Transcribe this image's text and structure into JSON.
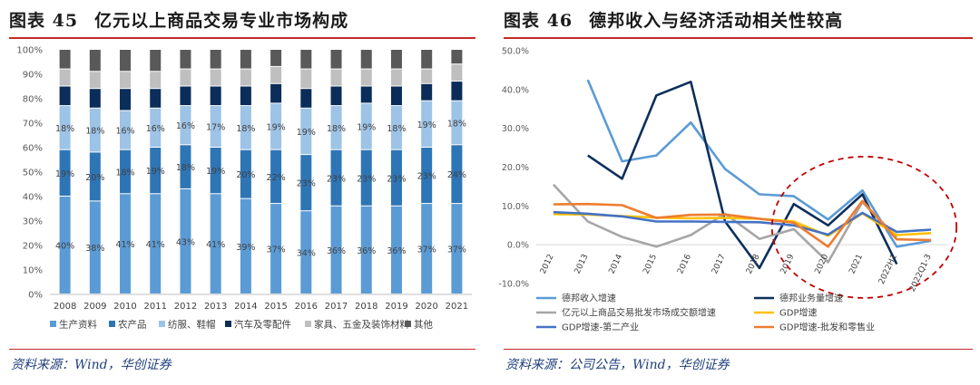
{
  "left": {
    "title_num": "图表 45",
    "title_text": "亿元以上商品交易专业市场构成",
    "source": "资料来源：Wind，华创证券",
    "chart_data": {
      "type": "bar",
      "stacked": true,
      "categories": [
        "2008",
        "2009",
        "2010",
        "2011",
        "2012",
        "2013",
        "2014",
        "2015",
        "2016",
        "2017",
        "2018",
        "2019",
        "2020",
        "2021"
      ],
      "ylim": [
        0,
        100
      ],
      "yticks": [
        "0%",
        "10%",
        "20%",
        "30%",
        "40%",
        "50%",
        "60%",
        "70%",
        "80%",
        "90%",
        "100%"
      ],
      "series": [
        {
          "name": "生产资料",
          "color": "#5b9bd5",
          "values": [
            40,
            38,
            41,
            41,
            43,
            41,
            39,
            37,
            34,
            36,
            36,
            36,
            37,
            37
          ],
          "labels": [
            "40%",
            "38%",
            "41%",
            "41%",
            "43%",
            "41%",
            "39%",
            "37%",
            "34%",
            "36%",
            "36%",
            "36%",
            "37%",
            "37%"
          ]
        },
        {
          "name": "农产品",
          "color": "#2e75b6",
          "values": [
            19,
            20,
            18,
            19,
            18,
            19,
            20,
            22,
            23,
            23,
            23,
            23,
            23,
            24
          ],
          "labels": [
            "19%",
            "20%",
            "18%",
            "19%",
            "18%",
            "19%",
            "20%",
            "22%",
            "23%",
            "23%",
            "23%",
            "23%",
            "23%",
            "24%"
          ]
        },
        {
          "name": "纺服、鞋帽",
          "color": "#9dc3e6",
          "values": [
            18,
            18,
            16,
            16,
            16,
            17,
            18,
            19,
            19,
            18,
            19,
            18,
            19,
            18
          ],
          "labels": [
            "18%",
            "18%",
            "16%",
            "16%",
            "16%",
            "17%",
            "18%",
            "19%",
            "19%",
            "18%",
            "19%",
            "18%",
            "19%",
            "18%"
          ]
        },
        {
          "name": "汽车及零配件",
          "color": "#0a2d5a",
          "values": [
            8,
            8,
            9,
            8,
            8,
            8,
            8,
            8,
            8,
            8,
            7,
            8,
            7,
            8
          ],
          "labels": []
        },
        {
          "name": "家具、五金及装饰材料",
          "color": "#bfbfbf",
          "values": [
            7,
            7,
            7,
            7,
            7,
            7,
            7,
            7,
            8,
            7,
            7,
            7,
            6,
            7
          ],
          "labels": []
        },
        {
          "name": "其他",
          "color": "#595959",
          "values": [
            8,
            9,
            9,
            9,
            8,
            8,
            8,
            7,
            8,
            8,
            8,
            8,
            8,
            6
          ],
          "labels": []
        }
      ]
    }
  },
  "right": {
    "title_num": "图表 46",
    "title_text": "德邦收入与经济活动相关性较高",
    "source": "资料来源：公司公告，Wind，华创证券",
    "chart_data": {
      "type": "line",
      "categories": [
        "2012",
        "2013",
        "2014",
        "2015",
        "2016",
        "2017",
        "2018",
        "2019",
        "2020",
        "2021",
        "2022H1",
        "2022Q1-3"
      ],
      "ylim": [
        -10,
        50
      ],
      "yticks": [
        "-10.0%",
        "0.0%",
        "10.0%",
        "20.0%",
        "30.0%",
        "40.0%",
        "50.0%"
      ],
      "highlight_note": "dashed ellipse around 2019–2022Q1-3",
      "series": [
        {
          "name": "德邦收入增速",
          "color": "#5b9bd5",
          "values": [
            null,
            42.5,
            21.5,
            23,
            31.5,
            19.5,
            13,
            12.5,
            6.5,
            14,
            -0.5,
            1
          ]
        },
        {
          "name": "德邦业务量增速",
          "color": "#0d2f5c",
          "values": [
            null,
            23,
            17,
            38.5,
            42,
            6,
            -6,
            10.5,
            5,
            13,
            -5,
            null
          ]
        },
        {
          "name": "亿元以上商品交易批发市场成交额增速",
          "color": "#a6a6a6",
          "values": [
            15.5,
            6,
            2,
            -0.5,
            2.5,
            8,
            1.5,
            4,
            -4.5,
            11,
            2,
            null
          ]
        },
        {
          "name": "GDP增速",
          "color": "#ffc000",
          "values": [
            7.9,
            7.8,
            7.4,
            7,
            6.8,
            6.9,
            6.7,
            6,
            2.3,
            8.1,
            2.5,
            3
          ]
        },
        {
          "name": "GDP增速-第二产业",
          "color": "#4472c4",
          "values": [
            8.4,
            8,
            7.3,
            6,
            6,
            5.9,
            5.8,
            5,
            2.6,
            8.2,
            3.3,
            3.9
          ]
        },
        {
          "name": "GDP增速-批发和零售业",
          "color": "#ed7d31",
          "values": [
            10.4,
            10.5,
            10.2,
            6.9,
            7.7,
            7.8,
            6.7,
            5.7,
            -0.5,
            11.3,
            1.4,
            1.2
          ]
        }
      ]
    }
  }
}
